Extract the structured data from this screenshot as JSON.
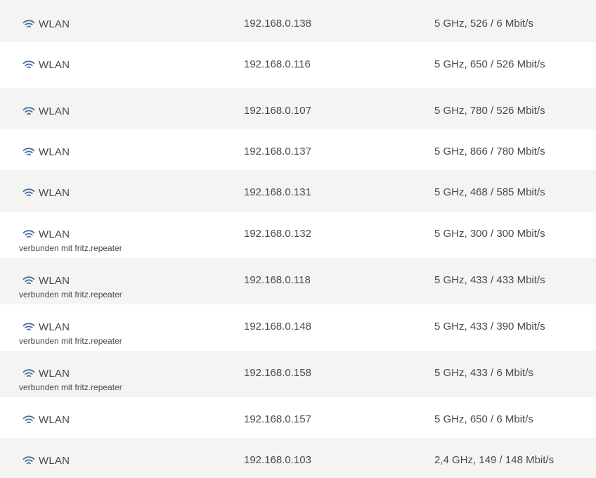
{
  "colors": {
    "row_shaded": "#f4f4f2",
    "text": "#4a4a4a",
    "wifi_icon": "#4a6fa5"
  },
  "devices": [
    {
      "connection": "WLAN",
      "icon": "wifi-icon",
      "note": "",
      "ip": "192.168.0.138",
      "rate": "5 GHz, 526 / 6 Mbit/s"
    },
    {
      "connection": "WLAN",
      "icon": "wifi-icon",
      "note": "",
      "ip": "192.168.0.116",
      "rate": "5 GHz, 650 / 526 Mbit/s"
    },
    {
      "connection": "WLAN",
      "icon": "wifi-icon",
      "note": "",
      "ip": "192.168.0.107",
      "rate": "5 GHz, 780 / 526 Mbit/s"
    },
    {
      "connection": "WLAN",
      "icon": "wifi-icon",
      "note": "",
      "ip": "192.168.0.137",
      "rate": "5 GHz, 866 / 780 Mbit/s"
    },
    {
      "connection": "WLAN",
      "icon": "wifi-icon",
      "note": "",
      "ip": "192.168.0.131",
      "rate": "5 GHz, 468 / 585 Mbit/s"
    },
    {
      "connection": "WLAN",
      "icon": "wifi-icon",
      "note": "verbunden mit fritz.repeater",
      "ip": "192.168.0.132",
      "rate": "5 GHz, 300 / 300 Mbit/s"
    },
    {
      "connection": "WLAN",
      "icon": "wifi-icon",
      "note": "verbunden mit fritz.repeater",
      "ip": "192.168.0.118",
      "rate": "5 GHz, 433 / 433 Mbit/s"
    },
    {
      "connection": "WLAN",
      "icon": "wifi-icon",
      "note": "verbunden mit fritz.repeater",
      "ip": "192.168.0.148",
      "rate": "5 GHz, 433 / 390 Mbit/s"
    },
    {
      "connection": "WLAN",
      "icon": "wifi-icon",
      "note": "verbunden mit fritz.repeater",
      "ip": "192.168.0.158",
      "rate": "5 GHz, 433 / 6 Mbit/s"
    },
    {
      "connection": "WLAN",
      "icon": "wifi-icon",
      "note": "",
      "ip": "192.168.0.157",
      "rate": "5 GHz, 650 / 6 Mbit/s"
    },
    {
      "connection": "WLAN",
      "icon": "wifi-icon",
      "note": "",
      "ip": "192.168.0.103",
      "rate": "2,4 GHz, 149 / 148 Mbit/s"
    }
  ]
}
